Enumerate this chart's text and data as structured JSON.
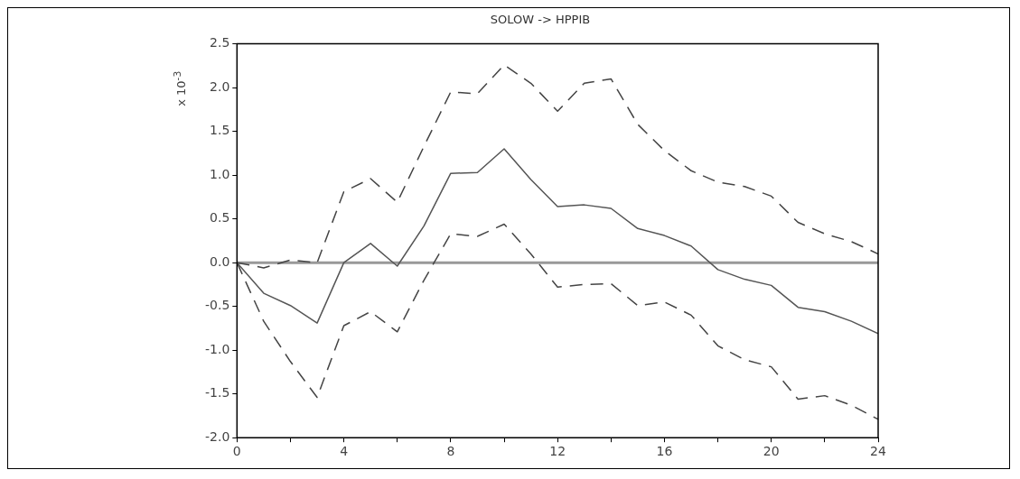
{
  "chart_data": {
    "type": "line",
    "title": "SOLOW -> HPPIB",
    "ylabel": "x 10$^{-3}$",
    "x": [
      0,
      1,
      2,
      3,
      4,
      5,
      6,
      7,
      8,
      9,
      10,
      11,
      12,
      13,
      14,
      15,
      16,
      17,
      18,
      19,
      20,
      21,
      22,
      23,
      24
    ],
    "series": [
      {
        "color": "#555555",
        "line_style": "solid",
        "values": [
          0,
          -0.35,
          -0.49,
          -0.69,
          0,
          0.22,
          -0.04,
          0.42,
          1.02,
          1.03,
          1.3,
          0.95,
          0.64,
          0.66,
          0.62,
          0.39,
          0.31,
          0.19,
          -0.08,
          -0.19,
          -0.26,
          -0.51,
          -0.56,
          -0.67,
          -0.81
        ]
      },
      {
        "color": "#444444",
        "line_style": "dashed",
        "values": [
          0,
          -0.06,
          0.03,
          0,
          0.81,
          0.96,
          0.69,
          1.33,
          1.95,
          1.93,
          2.26,
          2.05,
          1.73,
          2.05,
          2.1,
          1.58,
          1.28,
          1.05,
          0.92,
          0.87,
          0.76,
          0.46,
          0.33,
          0.24,
          0.1
        ]
      },
      {
        "color": "#444444",
        "line_style": "dashed",
        "values": [
          0,
          -0.67,
          -1.13,
          -1.54,
          -0.72,
          -0.56,
          -0.79,
          -0.2,
          0.33,
          0.3,
          0.44,
          0.1,
          -0.28,
          -0.25,
          -0.24,
          -0.49,
          -0.45,
          -0.6,
          -0.95,
          -1.11,
          -1.19,
          -1.56,
          -1.52,
          -1.63,
          -1.79
        ]
      }
    ],
    "xlim": [
      0,
      24
    ],
    "xticks": [
      0,
      {
        "value": 2,
        "label": null
      },
      4,
      {
        "value": 6,
        "label": null
      },
      8,
      {
        "value": 10,
        "label": null
      },
      12,
      {
        "value": 14,
        "label": null
      },
      16,
      {
        "value": 18,
        "label": null
      },
      20,
      {
        "value": 22,
        "label": null
      },
      24
    ],
    "ylim": [
      -2,
      2.5
    ],
    "yticks": [
      {
        "value": -2,
        "label": "-2.0"
      },
      {
        "value": -1.5,
        "label": "-1.5"
      },
      {
        "value": -1,
        "label": "-1.0"
      },
      {
        "value": -0.5,
        "label": "-0.5"
      },
      {
        "value": 0,
        "label": "0.0"
      },
      {
        "value": 0.5,
        "label": "0.5"
      },
      {
        "value": 1,
        "label": "1.0"
      },
      {
        "value": 1.5,
        "label": "1.5"
      },
      {
        "value": 2,
        "label": "2.0"
      },
      {
        "value": 2.5,
        "label": "2.5"
      }
    ],
    "ref_lines": [
      {
        "axis": "y",
        "value": 0,
        "color": "#999999"
      }
    ],
    "grid": false,
    "legend": false,
    "marker": "none"
  }
}
